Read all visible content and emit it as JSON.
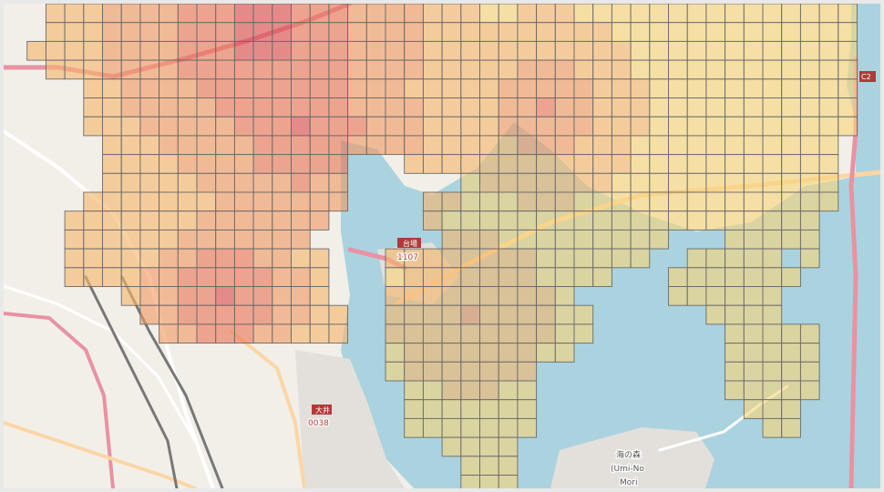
{
  "map": {
    "colors": {
      "water": "#aad3df",
      "land": "#f2efe9",
      "land_gray": "#e3e0db",
      "road_orange": "#fcd6a4",
      "road_red": "#e892a2",
      "road_white": "#ffffff",
      "grid_border": "#6a6a6a",
      "pier": "#dddddd"
    },
    "labels": {
      "daiba": "台場",
      "daiba_code": "1107",
      "oi": "大井",
      "oi_code": "0038",
      "umi_no_mori": "海の森",
      "umi_no_mori_romaji_1": "(Umi-No",
      "umi_no_mori_romaji_2": "Mori",
      "c2": "C2"
    },
    "heatmap": {
      "type": "heatmap",
      "cell_colors": [
        "#f7d57b",
        "#f5b76c",
        "#f19a62",
        "#ea7657",
        "#dc4d4f"
      ],
      "cell_opacity": 0.62
    }
  }
}
